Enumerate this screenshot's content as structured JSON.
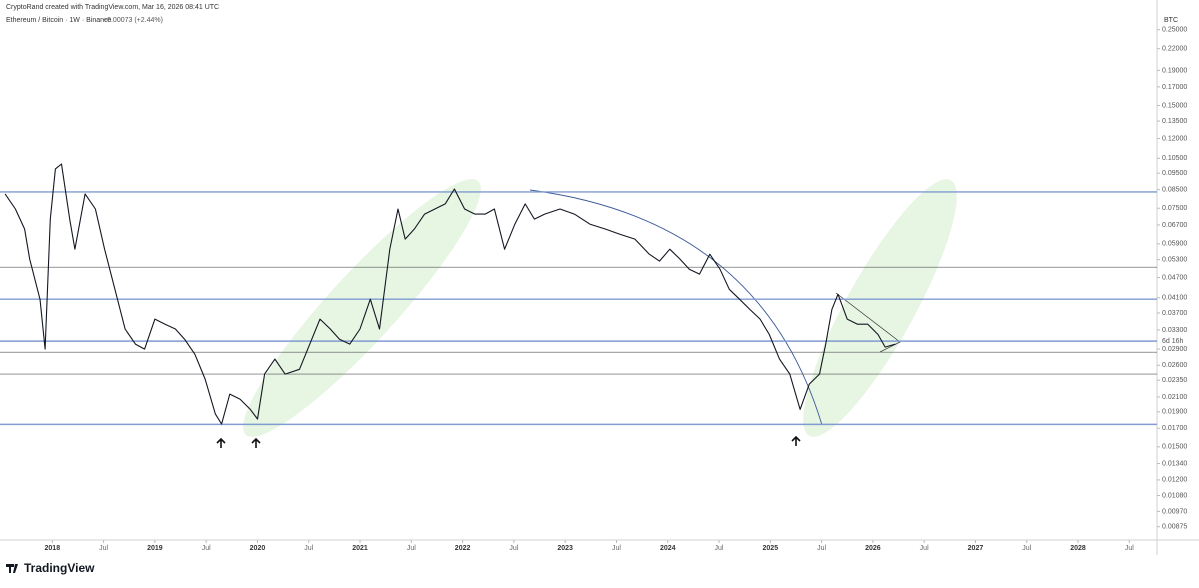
{
  "header": {
    "credit": "CryptoRand created with TradingView.com, Mar 16, 2026 08:41 UTC",
    "symbol": "Ethereum / Bitcoin · 1W · Binance",
    "change": "+0.00073 (+2.44%)"
  },
  "chart_data": {
    "type": "line",
    "log_scale": true,
    "grid": false,
    "axis_unit": "BTC",
    "countdown": "6d 16h",
    "x": [
      2017.54,
      2017.64,
      2017.73,
      2017.78,
      2017.88,
      2017.93,
      2017.98,
      2018.03,
      2018.09,
      2018.17,
      2018.22,
      2018.32,
      2018.42,
      2018.51,
      2018.61,
      2018.71,
      2018.81,
      2018.9,
      2019.0,
      2019.1,
      2019.2,
      2019.29,
      2019.39,
      2019.49,
      2019.59,
      2019.65,
      2019.73,
      2019.83,
      2019.93,
      2020.0,
      2020.07,
      2020.17,
      2020.27,
      2020.41,
      2020.51,
      2020.61,
      2020.71,
      2020.8,
      2020.9,
      2021.0,
      2021.1,
      2021.19,
      2021.29,
      2021.37,
      2021.44,
      2021.53,
      2021.63,
      2021.73,
      2021.83,
      2021.92,
      2022.02,
      2022.12,
      2022.22,
      2022.31,
      2022.41,
      2022.51,
      2022.61,
      2022.7,
      2022.8,
      2022.95,
      2023.09,
      2023.24,
      2023.39,
      2023.53,
      2023.68,
      2023.82,
      2023.92,
      2024.02,
      2024.12,
      2024.21,
      2024.31,
      2024.41,
      2024.51,
      2024.6,
      2024.7,
      2024.8,
      2024.9,
      2024.99,
      2025.09,
      2025.19,
      2025.29,
      2025.38,
      2025.48,
      2025.54,
      2025.6,
      2025.66,
      2025.75,
      2025.85,
      2025.95,
      2026.05,
      2026.12,
      2026.22
    ],
    "series": [
      {
        "name": "Ethereum / Bitcoin",
        "color": "#131722",
        "values": [
          0.0826,
          0.0746,
          0.0652,
          0.0532,
          0.0406,
          0.029,
          0.0697,
          0.0978,
          0.1011,
          0.0697,
          0.0569,
          0.0826,
          0.0746,
          0.0569,
          0.0434,
          0.0332,
          0.03,
          0.029,
          0.0355,
          0.0343,
          0.0332,
          0.031,
          0.028,
          0.0237,
          0.0187,
          0.0175,
          0.0214,
          0.0207,
          0.0193,
          0.0181,
          0.0245,
          0.0271,
          0.0245,
          0.0253,
          0.03,
          0.0355,
          0.0332,
          0.031,
          0.03,
          0.0332,
          0.0406,
          0.0332,
          0.0569,
          0.0746,
          0.0609,
          0.0652,
          0.0721,
          0.0746,
          0.0772,
          0.0854,
          0.0746,
          0.0721,
          0.0721,
          0.0746,
          0.0569,
          0.0674,
          0.0772,
          0.0697,
          0.0721,
          0.0746,
          0.0721,
          0.0674,
          0.0652,
          0.063,
          0.0609,
          0.055,
          0.0525,
          0.0569,
          0.0532,
          0.0497,
          0.0481,
          0.055,
          0.0497,
          0.0434,
          0.0406,
          0.0379,
          0.0355,
          0.032,
          0.0271,
          0.0245,
          0.0193,
          0.0229,
          0.0245,
          0.03,
          0.0379,
          0.042,
          0.0355,
          0.0343,
          0.0343,
          0.032,
          0.0294,
          0.03
        ]
      }
    ],
    "levels": [
      {
        "value": 0.0837,
        "color": "#7f9bd1"
      },
      {
        "value": 0.0504,
        "color": "#555555"
      },
      {
        "value": 0.0406,
        "color": "#7f9bd1"
      },
      {
        "value": 0.0306,
        "color": "#7f9bd1"
      },
      {
        "value": 0.0284,
        "color": "#555555"
      },
      {
        "value": 0.0245,
        "color": "#555555"
      },
      {
        "value": 0.01745,
        "color": "#7f9bd1"
      }
    ],
    "xlim": [
      2017.49,
      2028.77
    ],
    "xticks": [
      {
        "value": 2018,
        "label": "2018"
      },
      {
        "value": 2018.5,
        "label": "Jul"
      },
      {
        "value": 2019,
        "label": "2019"
      },
      {
        "value": 2019.5,
        "label": "Jul"
      },
      {
        "value": 2020,
        "label": "2020"
      },
      {
        "value": 2020.5,
        "label": "Jul"
      },
      {
        "value": 2021,
        "label": "2021"
      },
      {
        "value": 2021.5,
        "label": "Jul"
      },
      {
        "value": 2022,
        "label": "2022"
      },
      {
        "value": 2022.5,
        "label": "Jul"
      },
      {
        "value": 2023,
        "label": "2023"
      },
      {
        "value": 2023.5,
        "label": "Jul"
      },
      {
        "value": 2024,
        "label": "2024"
      },
      {
        "value": 2024.5,
        "label": "Jul"
      },
      {
        "value": 2025,
        "label": "2025"
      },
      {
        "value": 2025.5,
        "label": "Jul"
      },
      {
        "value": 2026,
        "label": "2026"
      },
      {
        "value": 2026.5,
        "label": "Jul"
      },
      {
        "value": 2027,
        "label": "2027"
      },
      {
        "value": 2027.5,
        "label": "Jul"
      },
      {
        "value": 2028,
        "label": "2028"
      },
      {
        "value": 2028.5,
        "label": "Jul"
      }
    ],
    "ylim": [
      0.008,
      0.278
    ],
    "yticks": [
      {
        "value": 0.25,
        "label": "0.25000"
      },
      {
        "value": 0.22,
        "label": "0.22000"
      },
      {
        "value": 0.19,
        "label": "0.19000"
      },
      {
        "value": 0.17,
        "label": "0.17000"
      },
      {
        "value": 0.15,
        "label": "0.15000"
      },
      {
        "value": 0.135,
        "label": "0.13500"
      },
      {
        "value": 0.12,
        "label": "0.12000"
      },
      {
        "value": 0.105,
        "label": "0.10500"
      },
      {
        "value": 0.095,
        "label": "0.09500"
      },
      {
        "value": 0.085,
        "label": "0.08500"
      },
      {
        "value": 0.075,
        "label": "0.07500"
      },
      {
        "value": 0.067,
        "label": "0.06700"
      },
      {
        "value": 0.059,
        "label": "0.05900"
      },
      {
        "value": 0.053,
        "label": "0.05300"
      },
      {
        "value": 0.047,
        "label": "0.04700"
      },
      {
        "value": 0.041,
        "label": "0.04100"
      },
      {
        "value": 0.037,
        "label": "0.03700"
      },
      {
        "value": 0.033,
        "label": "0.03300"
      },
      {
        "value": 0.029,
        "label": "0.02900"
      },
      {
        "value": 0.026,
        "label": "0.02600"
      },
      {
        "value": 0.0235,
        "label": "0.02350"
      },
      {
        "value": 0.021,
        "label": "0.02100"
      },
      {
        "value": 0.019,
        "label": "0.01900"
      },
      {
        "value": 0.017,
        "label": "0.01700"
      },
      {
        "value": 0.015,
        "label": "0.01500"
      },
      {
        "value": 0.0134,
        "label": "0.01340"
      },
      {
        "value": 0.012,
        "label": "0.01200"
      },
      {
        "value": 0.0108,
        "label": "0.01080"
      },
      {
        "value": 0.0097,
        "label": "0.00970"
      },
      {
        "value": 0.00875,
        "label": "0.00875"
      }
    ]
  },
  "footer": {
    "brand": "TradingView"
  }
}
